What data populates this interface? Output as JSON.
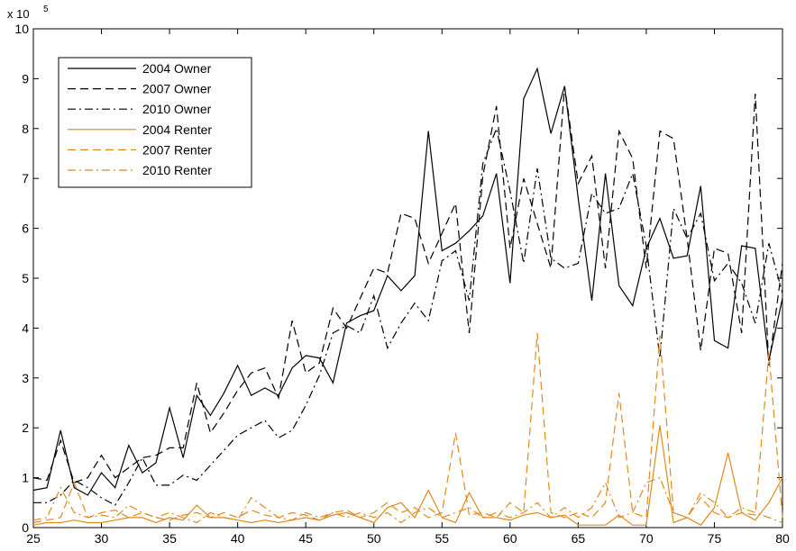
{
  "chart_data": {
    "type": "line",
    "y_scale_base": "x 10",
    "y_scale_exponent": "5",
    "x": [
      25,
      26,
      27,
      28,
      29,
      30,
      31,
      32,
      33,
      34,
      35,
      36,
      37,
      38,
      39,
      40,
      41,
      42,
      43,
      44,
      45,
      46,
      47,
      48,
      49,
      50,
      51,
      52,
      53,
      54,
      55,
      56,
      57,
      58,
      59,
      60,
      61,
      62,
      63,
      64,
      65,
      66,
      67,
      68,
      69,
      70,
      71,
      72,
      73,
      74,
      75,
      76,
      77,
      78,
      79,
      80
    ],
    "xlim": [
      25,
      80
    ],
    "xticks": [
      25,
      30,
      35,
      40,
      45,
      50,
      55,
      60,
      65,
      70,
      75,
      80
    ],
    "ylim": [
      0,
      10
    ],
    "yticks": [
      0,
      1,
      2,
      3,
      4,
      5,
      6,
      7,
      8,
      9,
      10
    ],
    "legend": "upper-left",
    "series": [
      {
        "name": "2004 Owner",
        "color": "#000000",
        "line_style": "solid",
        "values": [
          0.75,
          0.8,
          1.95,
          0.8,
          0.65,
          1.1,
          0.8,
          1.65,
          1.1,
          1.3,
          2.4,
          1.4,
          2.65,
          2.25,
          2.7,
          3.25,
          2.65,
          2.8,
          2.65,
          3.2,
          3.45,
          3.4,
          2.9,
          4.1,
          4.25,
          4.35,
          5.05,
          4.75,
          5.05,
          7.95,
          5.55,
          5.7,
          5.95,
          6.25,
          7.1,
          4.9,
          8.6,
          9.2,
          7.9,
          8.85,
          6.6,
          4.55,
          7.1,
          4.85,
          4.45,
          5.6,
          6.2,
          5.4,
          5.45,
          6.85,
          3.75,
          3.6,
          5.65,
          5.6,
          3.35,
          4.6
        ]
      },
      {
        "name": "2007 Owner",
        "color": "#000000",
        "line_style": "dashed",
        "values": [
          1.0,
          0.95,
          1.75,
          0.9,
          1.0,
          1.45,
          1.0,
          1.2,
          1.4,
          1.45,
          1.6,
          1.6,
          2.9,
          1.9,
          2.3,
          2.75,
          3.1,
          3.2,
          2.6,
          4.15,
          3.1,
          3.3,
          4.4,
          4.0,
          4.6,
          5.2,
          5.1,
          6.3,
          6.2,
          5.3,
          5.9,
          6.5,
          3.9,
          7.05,
          8.45,
          5.6,
          7.0,
          6.1,
          5.2,
          8.85,
          6.9,
          7.45,
          5.2,
          7.95,
          7.4,
          5.2,
          7.95,
          7.8,
          5.8,
          3.55,
          5.6,
          5.5,
          3.9,
          8.7,
          3.25,
          5.3
        ]
      },
      {
        "name": "2010 Owner",
        "color": "#000000",
        "line_style": "dashdot",
        "values": [
          0.5,
          0.5,
          0.65,
          0.95,
          0.8,
          0.6,
          0.45,
          0.9,
          1.4,
          0.85,
          0.85,
          1.05,
          0.95,
          1.25,
          1.55,
          1.85,
          2.0,
          2.15,
          1.8,
          1.95,
          2.45,
          3.05,
          3.9,
          4.05,
          3.9,
          4.65,
          3.6,
          4.1,
          4.5,
          4.15,
          5.35,
          5.55,
          4.55,
          7.3,
          8.0,
          6.75,
          5.3,
          7.2,
          5.4,
          5.2,
          5.3,
          6.7,
          6.3,
          6.4,
          7.1,
          5.65,
          3.4,
          6.4,
          5.8,
          6.3,
          4.95,
          5.3,
          4.9,
          4.1,
          5.7,
          4.7
        ]
      },
      {
        "name": "2004 Renter",
        "color": "#e08a1e",
        "line_style": "solid",
        "values": [
          0.05,
          0.1,
          0.1,
          0.15,
          0.1,
          0.1,
          0.15,
          0.2,
          0.2,
          0.1,
          0.2,
          0.15,
          0.45,
          0.2,
          0.2,
          0.15,
          0.1,
          0.15,
          0.1,
          0.15,
          0.2,
          0.15,
          0.25,
          0.3,
          0.2,
          0.1,
          0.4,
          0.5,
          0.2,
          0.75,
          0.2,
          0.1,
          0.7,
          0.2,
          0.2,
          0.15,
          0.25,
          0.3,
          0.2,
          0.25,
          0.05,
          0.05,
          0.05,
          0.25,
          0.05,
          0.05,
          2.05,
          0.1,
          0.2,
          0.05,
          0.4,
          1.5,
          0.3,
          0.15,
          0.5,
          1.0
        ]
      },
      {
        "name": "2007 Renter",
        "color": "#e08a1e",
        "line_style": "dashed",
        "values": [
          0.1,
          0.15,
          0.2,
          0.9,
          0.2,
          0.3,
          0.35,
          0.2,
          0.3,
          0.2,
          0.15,
          0.25,
          0.3,
          0.2,
          0.3,
          0.2,
          0.35,
          0.25,
          0.2,
          0.3,
          0.25,
          0.15,
          0.3,
          0.35,
          0.2,
          0.3,
          0.5,
          0.3,
          0.4,
          0.2,
          0.3,
          1.9,
          0.25,
          0.3,
          0.2,
          0.5,
          0.3,
          3.9,
          0.3,
          0.2,
          0.3,
          0.2,
          0.5,
          2.7,
          0.3,
          0.2,
          3.85,
          0.3,
          0.2,
          0.6,
          0.3,
          0.2,
          0.3,
          0.25,
          3.5,
          0.2
        ]
      },
      {
        "name": "2010 Renter",
        "color": "#e08a1e",
        "line_style": "dashdot",
        "values": [
          0.15,
          0.2,
          0.8,
          0.3,
          0.2,
          0.25,
          0.2,
          0.45,
          0.3,
          0.2,
          0.3,
          0.2,
          0.1,
          0.3,
          0.2,
          0.15,
          0.6,
          0.4,
          0.2,
          0.15,
          0.3,
          0.2,
          0.3,
          0.2,
          0.3,
          0.2,
          0.3,
          0.1,
          0.3,
          0.4,
          0.2,
          0.3,
          0.4,
          0.2,
          0.3,
          0.2,
          0.3,
          0.5,
          0.2,
          0.4,
          0.2,
          0.4,
          0.9,
          0.2,
          0.3,
          0.9,
          1.0,
          0.3,
          0.2,
          0.7,
          0.5,
          0.2,
          0.4,
          0.3,
          0.2,
          0.1
        ]
      }
    ]
  }
}
